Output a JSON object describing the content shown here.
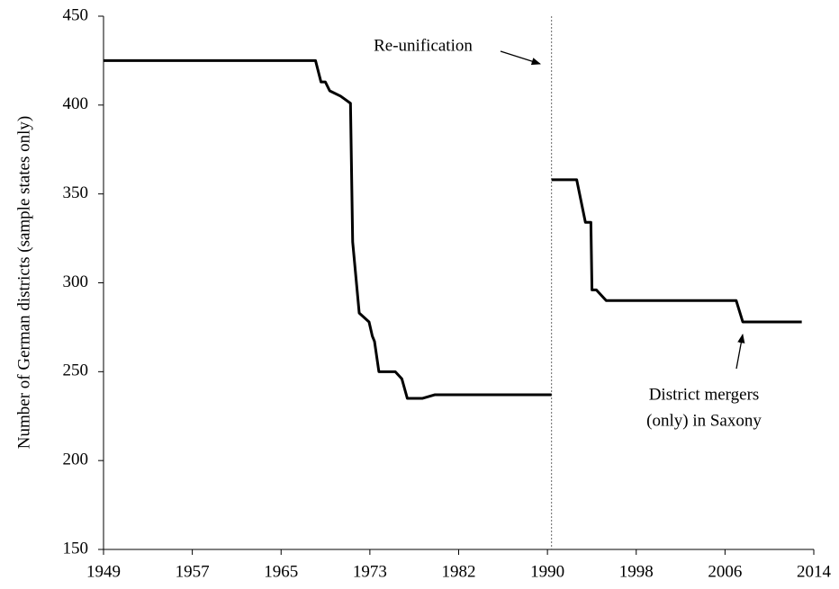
{
  "chart_data": {
    "type": "line",
    "y_label": "Number of German districts (sample states only)",
    "x": [
      1949,
      1968.4,
      1968.9,
      1969.3,
      1969.7,
      1970.7,
      1971.6,
      1971.8,
      1972.4,
      1973.3,
      1973.6,
      1973.8,
      1974.2,
      1975.7,
      1976.3,
      1976.8,
      1978.2,
      1979.3,
      1990,
      1990,
      1990,
      1992.3,
      1993.1,
      1993.6,
      1993.7,
      1994.1,
      1995,
      2006.9,
      2007.5,
      2012.9
    ],
    "series": [
      {
        "color": "#000000",
        "values": [
          425,
          425,
          413,
          413,
          408,
          405,
          401,
          323,
          283,
          278,
          270,
          267,
          250,
          250,
          246,
          235,
          235,
          237,
          237,
          null,
          358,
          358,
          334,
          334,
          296,
          296,
          290,
          290,
          278,
          278
        ]
      }
    ],
    "xlim": [
      1949,
      2014
    ],
    "xticks": [
      1949,
      {
        "value": 1957.125,
        "label": "1957"
      },
      {
        "value": 1965.25,
        "label": "1965"
      },
      {
        "value": 1973.375,
        "label": "1973"
      },
      {
        "value": 1981.5,
        "label": "1982"
      },
      {
        "value": 1989.625,
        "label": "1990"
      },
      {
        "value": 1997.75,
        "label": "1998"
      },
      {
        "value": 2005.875,
        "label": "2006"
      },
      2014
    ],
    "ylim": [
      150,
      450
    ],
    "yticks": [
      150,
      200,
      250,
      300,
      350,
      400,
      450
    ],
    "reference_x": 1990,
    "annotations": [
      {
        "lines": [
          "Re-unification"
        ]
      },
      {
        "lines": [
          "District mergers",
          "(only) in Saxony"
        ]
      }
    ]
  }
}
